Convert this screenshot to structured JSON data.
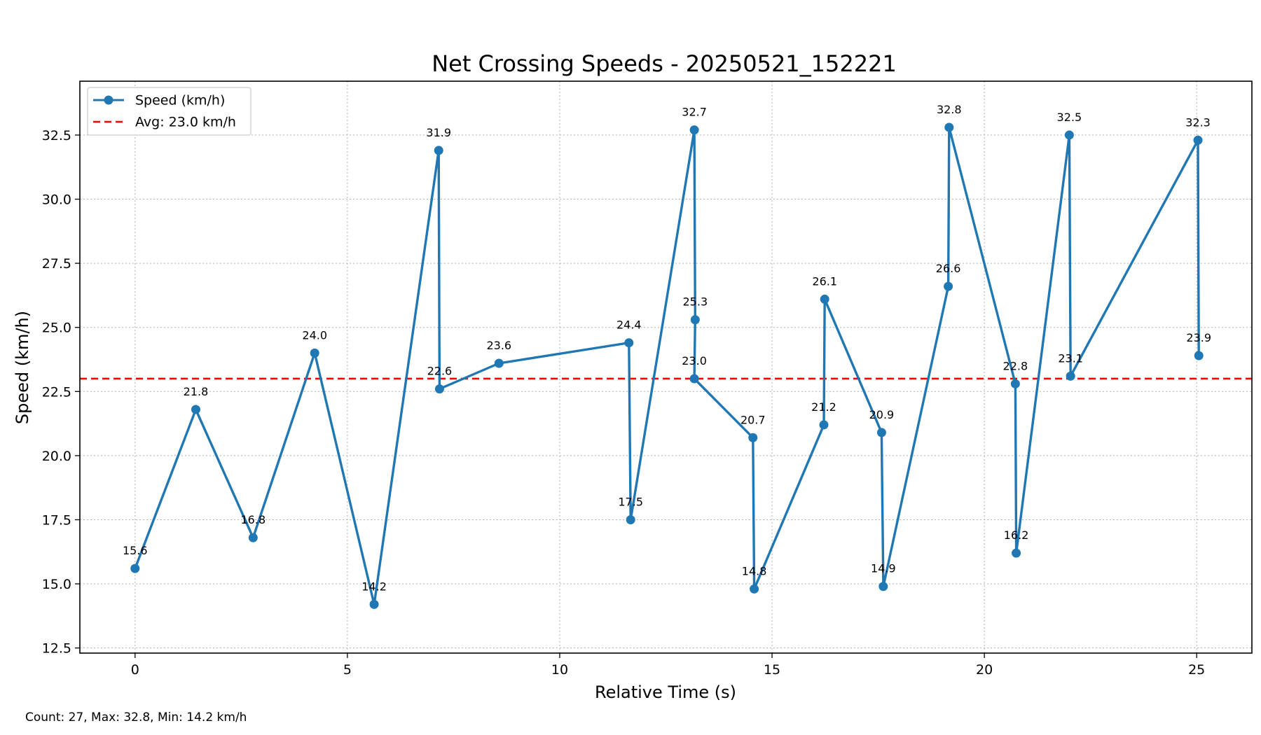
{
  "chart_data": {
    "type": "line",
    "title": "Net Crossing Speeds - 20250521_152221",
    "xlabel": "Relative Time (s)",
    "ylabel": "Speed (km/h)",
    "xlim": [
      -1.3,
      26.3
    ],
    "ylim": [
      12.3,
      34.6
    ],
    "xticks": [
      0,
      5,
      10,
      15,
      20,
      25
    ],
    "yticks": [
      12.5,
      15.0,
      17.5,
      20.0,
      22.5,
      25.0,
      27.5,
      30.0,
      32.5
    ],
    "grid": true,
    "legend_position": "top-left",
    "series": [
      {
        "name": "Speed (km/h)",
        "color": "#1f77b4",
        "x": [
          0.0,
          1.43,
          2.78,
          4.23,
          5.63,
          7.15,
          7.17,
          8.57,
          11.63,
          11.67,
          13.17,
          13.19,
          13.17,
          14.55,
          14.58,
          16.22,
          16.24,
          17.58,
          17.62,
          19.15,
          19.17,
          20.73,
          20.75,
          22.0,
          22.03,
          25.03,
          25.05
        ],
        "y": [
          15.6,
          21.8,
          16.8,
          24.0,
          14.2,
          31.9,
          22.6,
          23.6,
          24.4,
          17.5,
          32.7,
          25.3,
          23.0,
          20.7,
          14.8,
          21.2,
          26.1,
          20.9,
          14.9,
          26.6,
          32.8,
          22.8,
          16.2,
          32.5,
          23.1,
          32.3,
          23.9
        ],
        "labels": [
          "15.6",
          "21.8",
          "16.8",
          "24.0",
          "14.2",
          "31.9",
          "22.6",
          "23.6",
          "24.4",
          "17.5",
          "32.7",
          "25.3",
          "23.0",
          "20.7",
          "14.8",
          "21.2",
          "26.1",
          "20.9",
          "14.9",
          "26.6",
          "32.8",
          "22.8",
          "16.2",
          "32.5",
          "23.1",
          "32.3",
          "23.9"
        ]
      }
    ],
    "average": {
      "name": "Avg: 23.0 km/h",
      "value": 23.0,
      "color": "#ff0000"
    }
  },
  "footer": {
    "text": "Count: 27, Max: 32.8, Min: 14.2 km/h"
  }
}
